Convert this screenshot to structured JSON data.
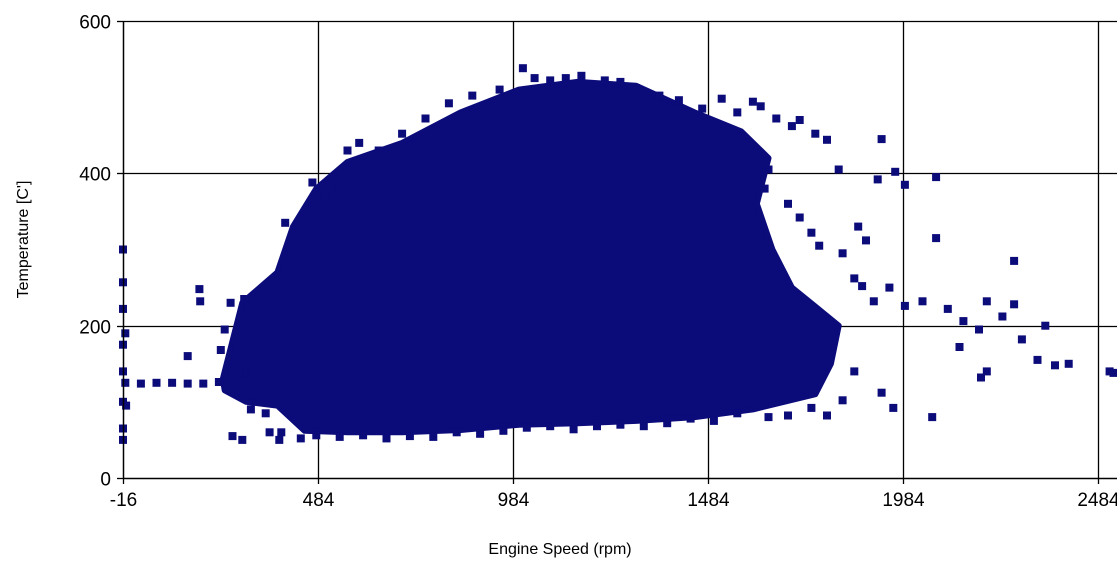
{
  "chart_data": {
    "type": "scatter",
    "title": "",
    "xlabel": "Engine Speed (rpm)",
    "ylabel": "Temperature [C']",
    "xlim": [
      -16,
      2534
    ],
    "ylim": [
      0,
      600
    ],
    "x_ticks": [
      -16,
      484,
      984,
      1484,
      1984,
      2484
    ],
    "y_ticks": [
      0,
      200,
      400,
      600
    ],
    "grid": true,
    "legend": "none",
    "marker": "square",
    "colors": {
      "points": "#0b0b7a",
      "grid": "#000000",
      "axis": "#000000"
    },
    "series": [
      {
        "values": [
          [
            -16,
            300
          ],
          [
            -16,
            257
          ],
          [
            -16,
            222
          ],
          [
            -16,
            175
          ],
          [
            -16,
            140
          ],
          [
            -16,
            100
          ],
          [
            -16,
            65
          ],
          [
            -16,
            50
          ],
          [
            -10,
            190
          ],
          [
            -10,
            125
          ],
          [
            -8,
            95
          ],
          [
            30,
            124
          ],
          [
            70,
            125
          ],
          [
            110,
            125
          ],
          [
            150,
            124
          ],
          [
            190,
            124
          ],
          [
            230,
            126
          ],
          [
            250,
            122
          ],
          [
            150,
            160
          ],
          [
            180,
            248
          ],
          [
            182,
            232
          ],
          [
            245,
            195
          ],
          [
            235,
            168
          ],
          [
            260,
            230
          ],
          [
            295,
            235
          ],
          [
            265,
            55
          ],
          [
            290,
            50
          ],
          [
            300,
            138
          ],
          [
            312,
            90
          ],
          [
            350,
            85
          ],
          [
            360,
            60
          ],
          [
            385,
            50
          ],
          [
            390,
            60
          ],
          [
            400,
            335
          ],
          [
            420,
            300
          ],
          [
            440,
            322
          ],
          [
            470,
            388
          ],
          [
            500,
            372
          ],
          [
            520,
            382
          ],
          [
            560,
            430
          ],
          [
            590,
            440
          ],
          [
            640,
            430
          ],
          [
            700,
            452
          ],
          [
            760,
            472
          ],
          [
            820,
            492
          ],
          [
            880,
            502
          ],
          [
            950,
            510
          ],
          [
            1010,
            538
          ],
          [
            1040,
            525
          ],
          [
            1080,
            522
          ],
          [
            1120,
            525
          ],
          [
            1160,
            528
          ],
          [
            1220,
            522
          ],
          [
            1260,
            520
          ],
          [
            1300,
            512
          ],
          [
            1360,
            502
          ],
          [
            1410,
            496
          ],
          [
            1470,
            485
          ],
          [
            1520,
            498
          ],
          [
            1560,
            480
          ],
          [
            1600,
            494
          ],
          [
            1620,
            488
          ],
          [
            1660,
            472
          ],
          [
            1700,
            462
          ],
          [
            1720,
            470
          ],
          [
            1760,
            452
          ],
          [
            1790,
            444
          ],
          [
            1820,
            405
          ],
          [
            1640,
            405
          ],
          [
            1630,
            380
          ],
          [
            1690,
            360
          ],
          [
            1720,
            342
          ],
          [
            1750,
            322
          ],
          [
            1770,
            305
          ],
          [
            1830,
            295
          ],
          [
            1870,
            330
          ],
          [
            1890,
            312
          ],
          [
            1930,
            445
          ],
          [
            1920,
            392
          ],
          [
            1965,
            402
          ],
          [
            1990,
            385
          ],
          [
            2070,
            395
          ],
          [
            2070,
            315
          ],
          [
            1860,
            262
          ],
          [
            1880,
            252
          ],
          [
            1910,
            232
          ],
          [
            1950,
            250
          ],
          [
            1990,
            226
          ],
          [
            2035,
            232
          ],
          [
            2100,
            222
          ],
          [
            2140,
            206
          ],
          [
            2180,
            195
          ],
          [
            2200,
            232
          ],
          [
            2240,
            212
          ],
          [
            2270,
            285
          ],
          [
            2270,
            228
          ],
          [
            2290,
            182
          ],
          [
            2330,
            155
          ],
          [
            2350,
            200
          ],
          [
            2375,
            148
          ],
          [
            2410,
            150
          ],
          [
            2200,
            140
          ],
          [
            2185,
            132
          ],
          [
            2130,
            172
          ],
          [
            2060,
            80
          ],
          [
            1960,
            92
          ],
          [
            1930,
            112
          ],
          [
            1860,
            140
          ],
          [
            1830,
            102
          ],
          [
            1790,
            82
          ],
          [
            1750,
            92
          ],
          [
            1690,
            82
          ],
          [
            1640,
            80
          ],
          [
            1560,
            85
          ],
          [
            1500,
            75
          ],
          [
            1440,
            78
          ],
          [
            1380,
            72
          ],
          [
            1320,
            68
          ],
          [
            1260,
            70
          ],
          [
            1200,
            68
          ],
          [
            1140,
            64
          ],
          [
            1080,
            68
          ],
          [
            1020,
            66
          ],
          [
            960,
            62
          ],
          [
            900,
            58
          ],
          [
            840,
            60
          ],
          [
            780,
            54
          ],
          [
            720,
            55
          ],
          [
            660,
            52
          ],
          [
            600,
            56
          ],
          [
            540,
            54
          ],
          [
            480,
            56
          ],
          [
            440,
            52
          ],
          [
            2515,
            140
          ],
          [
            2525,
            138
          ]
        ]
      }
    ]
  }
}
